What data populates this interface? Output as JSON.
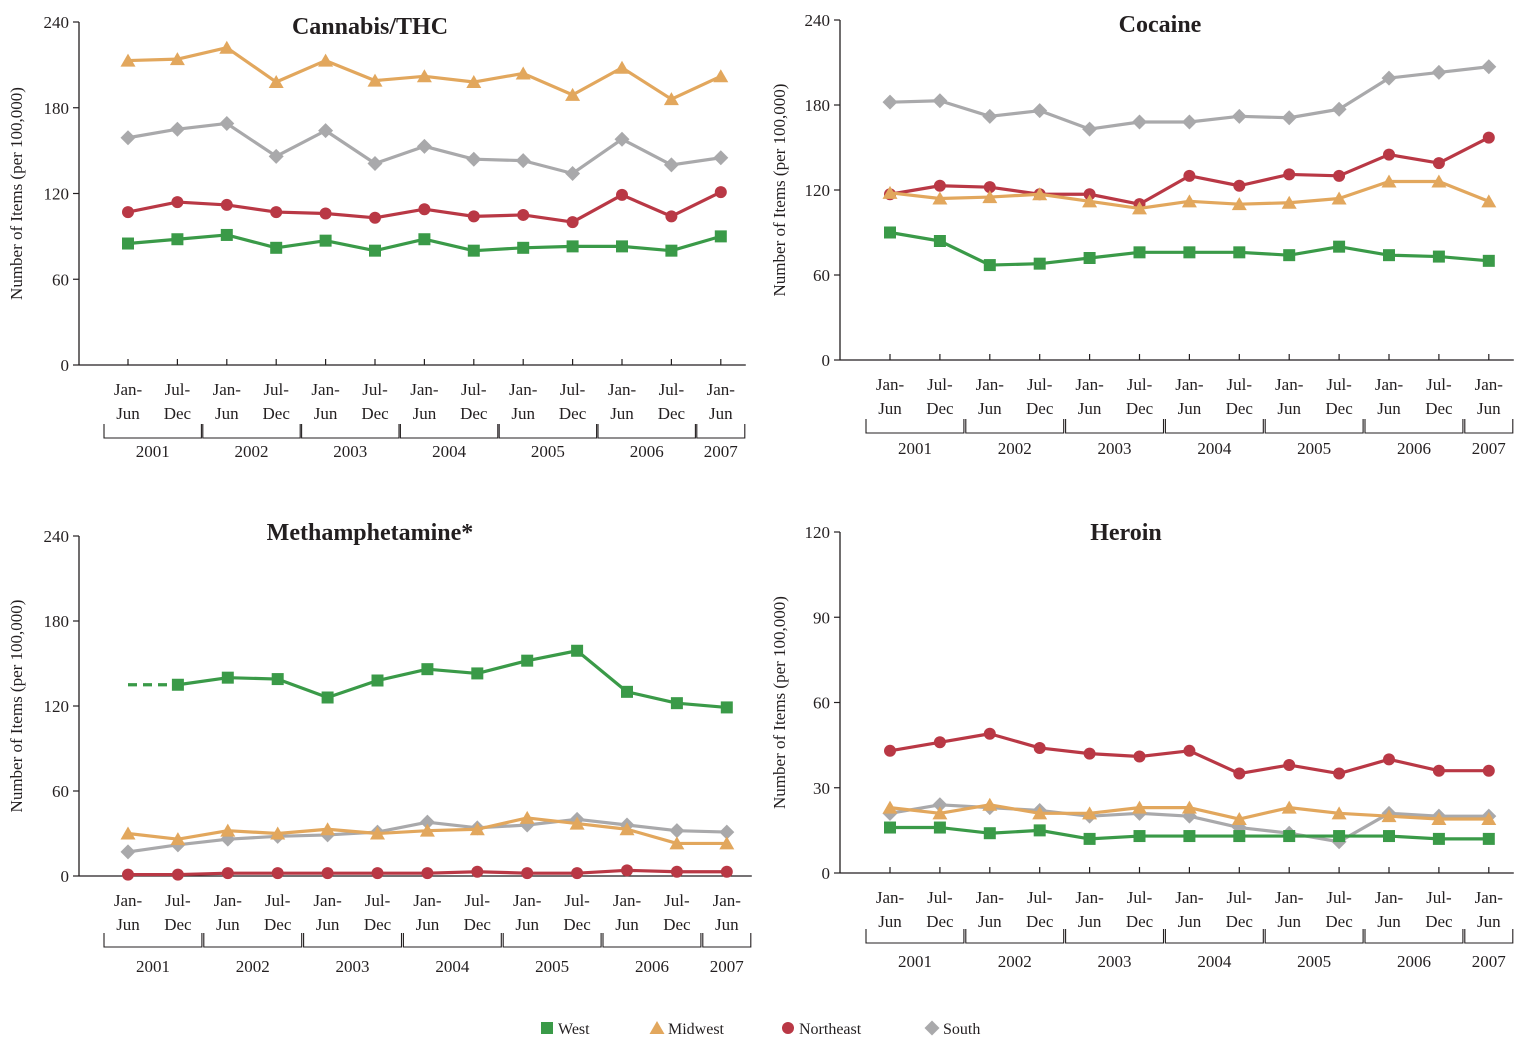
{
  "colors": {
    "West": "#3a9a48",
    "Midwest": "#e2a75d",
    "Northeast": "#b93845",
    "South": "#a9a9ab"
  },
  "x_tick_labels": [
    [
      "Jan-",
      "Jun"
    ],
    [
      "Jul-",
      "Dec"
    ],
    [
      "Jan-",
      "Jun"
    ],
    [
      "Jul-",
      "Dec"
    ],
    [
      "Jan-",
      "Jun"
    ],
    [
      "Jul-",
      "Dec"
    ],
    [
      "Jan-",
      "Jun"
    ],
    [
      "Jul-",
      "Dec"
    ],
    [
      "Jan-",
      "Jun"
    ],
    [
      "Jul-",
      "Dec"
    ],
    [
      "Jan-",
      "Jun"
    ],
    [
      "Jul-",
      "Dec"
    ],
    [
      "Jan-",
      "Jun"
    ]
  ],
  "year_labels": [
    "2001",
    "2002",
    "2003",
    "2004",
    "2005",
    "2006",
    "2007"
  ],
  "legend": [
    {
      "name": "West",
      "marker": "square"
    },
    {
      "name": "Midwest",
      "marker": "triangle"
    },
    {
      "name": "Northeast",
      "marker": "circle"
    },
    {
      "name": "South",
      "marker": "diamond"
    }
  ],
  "chart_data": [
    {
      "type": "line",
      "title": "Cannabis/THC",
      "ylabel": "Number of Items (per 100,000)",
      "ylim": [
        0,
        240
      ],
      "yticks": [
        "0",
        "60",
        "120",
        "180",
        "240"
      ],
      "x": [
        "Jan-Jun 2001",
        "Jul-Dec 2001",
        "Jan-Jun 2002",
        "Jul-Dec 2002",
        "Jan-Jun 2003",
        "Jul-Dec 2003",
        "Jan-Jun 2004",
        "Jul-Dec 2004",
        "Jan-Jun 2005",
        "Jul-Dec 2005",
        "Jan-Jun 2006",
        "Jul-Dec 2006",
        "Jan-Jun 2007"
      ],
      "series": [
        {
          "name": "West",
          "values": [
            85,
            88,
            91,
            82,
            87,
            80,
            88,
            80,
            82,
            83,
            83,
            80,
            90
          ]
        },
        {
          "name": "Midwest",
          "values": [
            213,
            214,
            222,
            198,
            213,
            199,
            202,
            198,
            204,
            189,
            208,
            186,
            202
          ]
        },
        {
          "name": "Northeast",
          "values": [
            107,
            114,
            112,
            107,
            106,
            103,
            109,
            104,
            105,
            100,
            119,
            104,
            121
          ]
        },
        {
          "name": "South",
          "values": [
            159,
            165,
            169,
            146,
            164,
            141,
            153,
            144,
            143,
            134,
            158,
            140,
            145
          ]
        }
      ]
    },
    {
      "type": "line",
      "title": "Cocaine",
      "ylabel": "Number of Items (per 100,000)",
      "ylim": [
        0,
        240
      ],
      "yticks": [
        "0",
        "60",
        "120",
        "180",
        "240"
      ],
      "x": [
        "Jan-Jun 2001",
        "Jul-Dec 2001",
        "Jan-Jun 2002",
        "Jul-Dec 2002",
        "Jan-Jun 2003",
        "Jul-Dec 2003",
        "Jan-Jun 2004",
        "Jul-Dec 2004",
        "Jan-Jun 2005",
        "Jul-Dec 2005",
        "Jan-Jun 2006",
        "Jul-Dec 2006",
        "Jan-Jun 2007"
      ],
      "series": [
        {
          "name": "West",
          "values": [
            90,
            84,
            67,
            68,
            72,
            76,
            76,
            76,
            74,
            80,
            74,
            73,
            70
          ]
        },
        {
          "name": "Midwest",
          "values": [
            118,
            114,
            115,
            117,
            112,
            107,
            112,
            110,
            111,
            114,
            126,
            126,
            112
          ]
        },
        {
          "name": "Northeast",
          "values": [
            117,
            123,
            122,
            117,
            117,
            110,
            130,
            123,
            131,
            130,
            145,
            139,
            157
          ]
        },
        {
          "name": "South",
          "values": [
            182,
            183,
            172,
            176,
            163,
            168,
            168,
            172,
            171,
            177,
            199,
            203,
            207
          ]
        }
      ]
    },
    {
      "type": "line",
      "title": "Methamphetamine*",
      "ylabel": "Number of Items (per 100,000)",
      "ylim": [
        0,
        240
      ],
      "yticks": [
        "0",
        "60",
        "120",
        "180",
        "240"
      ],
      "x": [
        "Jan-Jun 2001",
        "Jul-Dec 2001",
        "Jan-Jun 2002",
        "Jul-Dec 2002",
        "Jan-Jun 2003",
        "Jul-Dec 2003",
        "Jan-Jun 2004",
        "Jul-Dec 2004",
        "Jan-Jun 2005",
        "Jul-Dec 2005",
        "Jan-Jun 2006",
        "Jul-Dec 2006",
        "Jan-Jun 2007"
      ],
      "series": [
        {
          "name": "West",
          "values": [
            135,
            135,
            140,
            139,
            126,
            138,
            146,
            143,
            152,
            159,
            130,
            122,
            119
          ],
          "dashed_first_segment": true
        },
        {
          "name": "Midwest",
          "values": [
            30,
            26,
            32,
            30,
            33,
            30,
            32,
            33,
            41,
            37,
            33,
            23,
            23
          ]
        },
        {
          "name": "Northeast",
          "values": [
            1,
            1,
            2,
            2,
            2,
            2,
            2,
            3,
            2,
            2,
            4,
            3,
            3
          ]
        },
        {
          "name": "South",
          "values": [
            17,
            22,
            26,
            28,
            29,
            31,
            38,
            34,
            36,
            40,
            36,
            32,
            31
          ]
        }
      ]
    },
    {
      "type": "line",
      "title": "Heroin",
      "ylabel": "Number of Items (per 100,000)",
      "ylim": [
        0,
        120
      ],
      "yticks": [
        "0",
        "30",
        "60",
        "90",
        "120"
      ],
      "x": [
        "Jan-Jun 2001",
        "Jul-Dec 2001",
        "Jan-Jun 2002",
        "Jul-Dec 2002",
        "Jan-Jun 2003",
        "Jul-Dec 2003",
        "Jan-Jun 2004",
        "Jul-Dec 2004",
        "Jan-Jun 2005",
        "Jul-Dec 2005",
        "Jan-Jun 2006",
        "Jul-Dec 2006",
        "Jan-Jun 2007"
      ],
      "series": [
        {
          "name": "West",
          "values": [
            16,
            16,
            14,
            15,
            12,
            13,
            13,
            13,
            13,
            13,
            13,
            12,
            12
          ]
        },
        {
          "name": "Midwest",
          "values": [
            23,
            21,
            24,
            21,
            21,
            23,
            23,
            19,
            23,
            21,
            20,
            19,
            19
          ]
        },
        {
          "name": "Northeast",
          "values": [
            43,
            46,
            49,
            44,
            42,
            41,
            43,
            35,
            38,
            35,
            40,
            36,
            36
          ]
        },
        {
          "name": "South",
          "values": [
            21,
            24,
            23,
            22,
            20,
            21,
            20,
            16,
            14,
            11,
            21,
            20,
            20
          ]
        }
      ]
    }
  ]
}
